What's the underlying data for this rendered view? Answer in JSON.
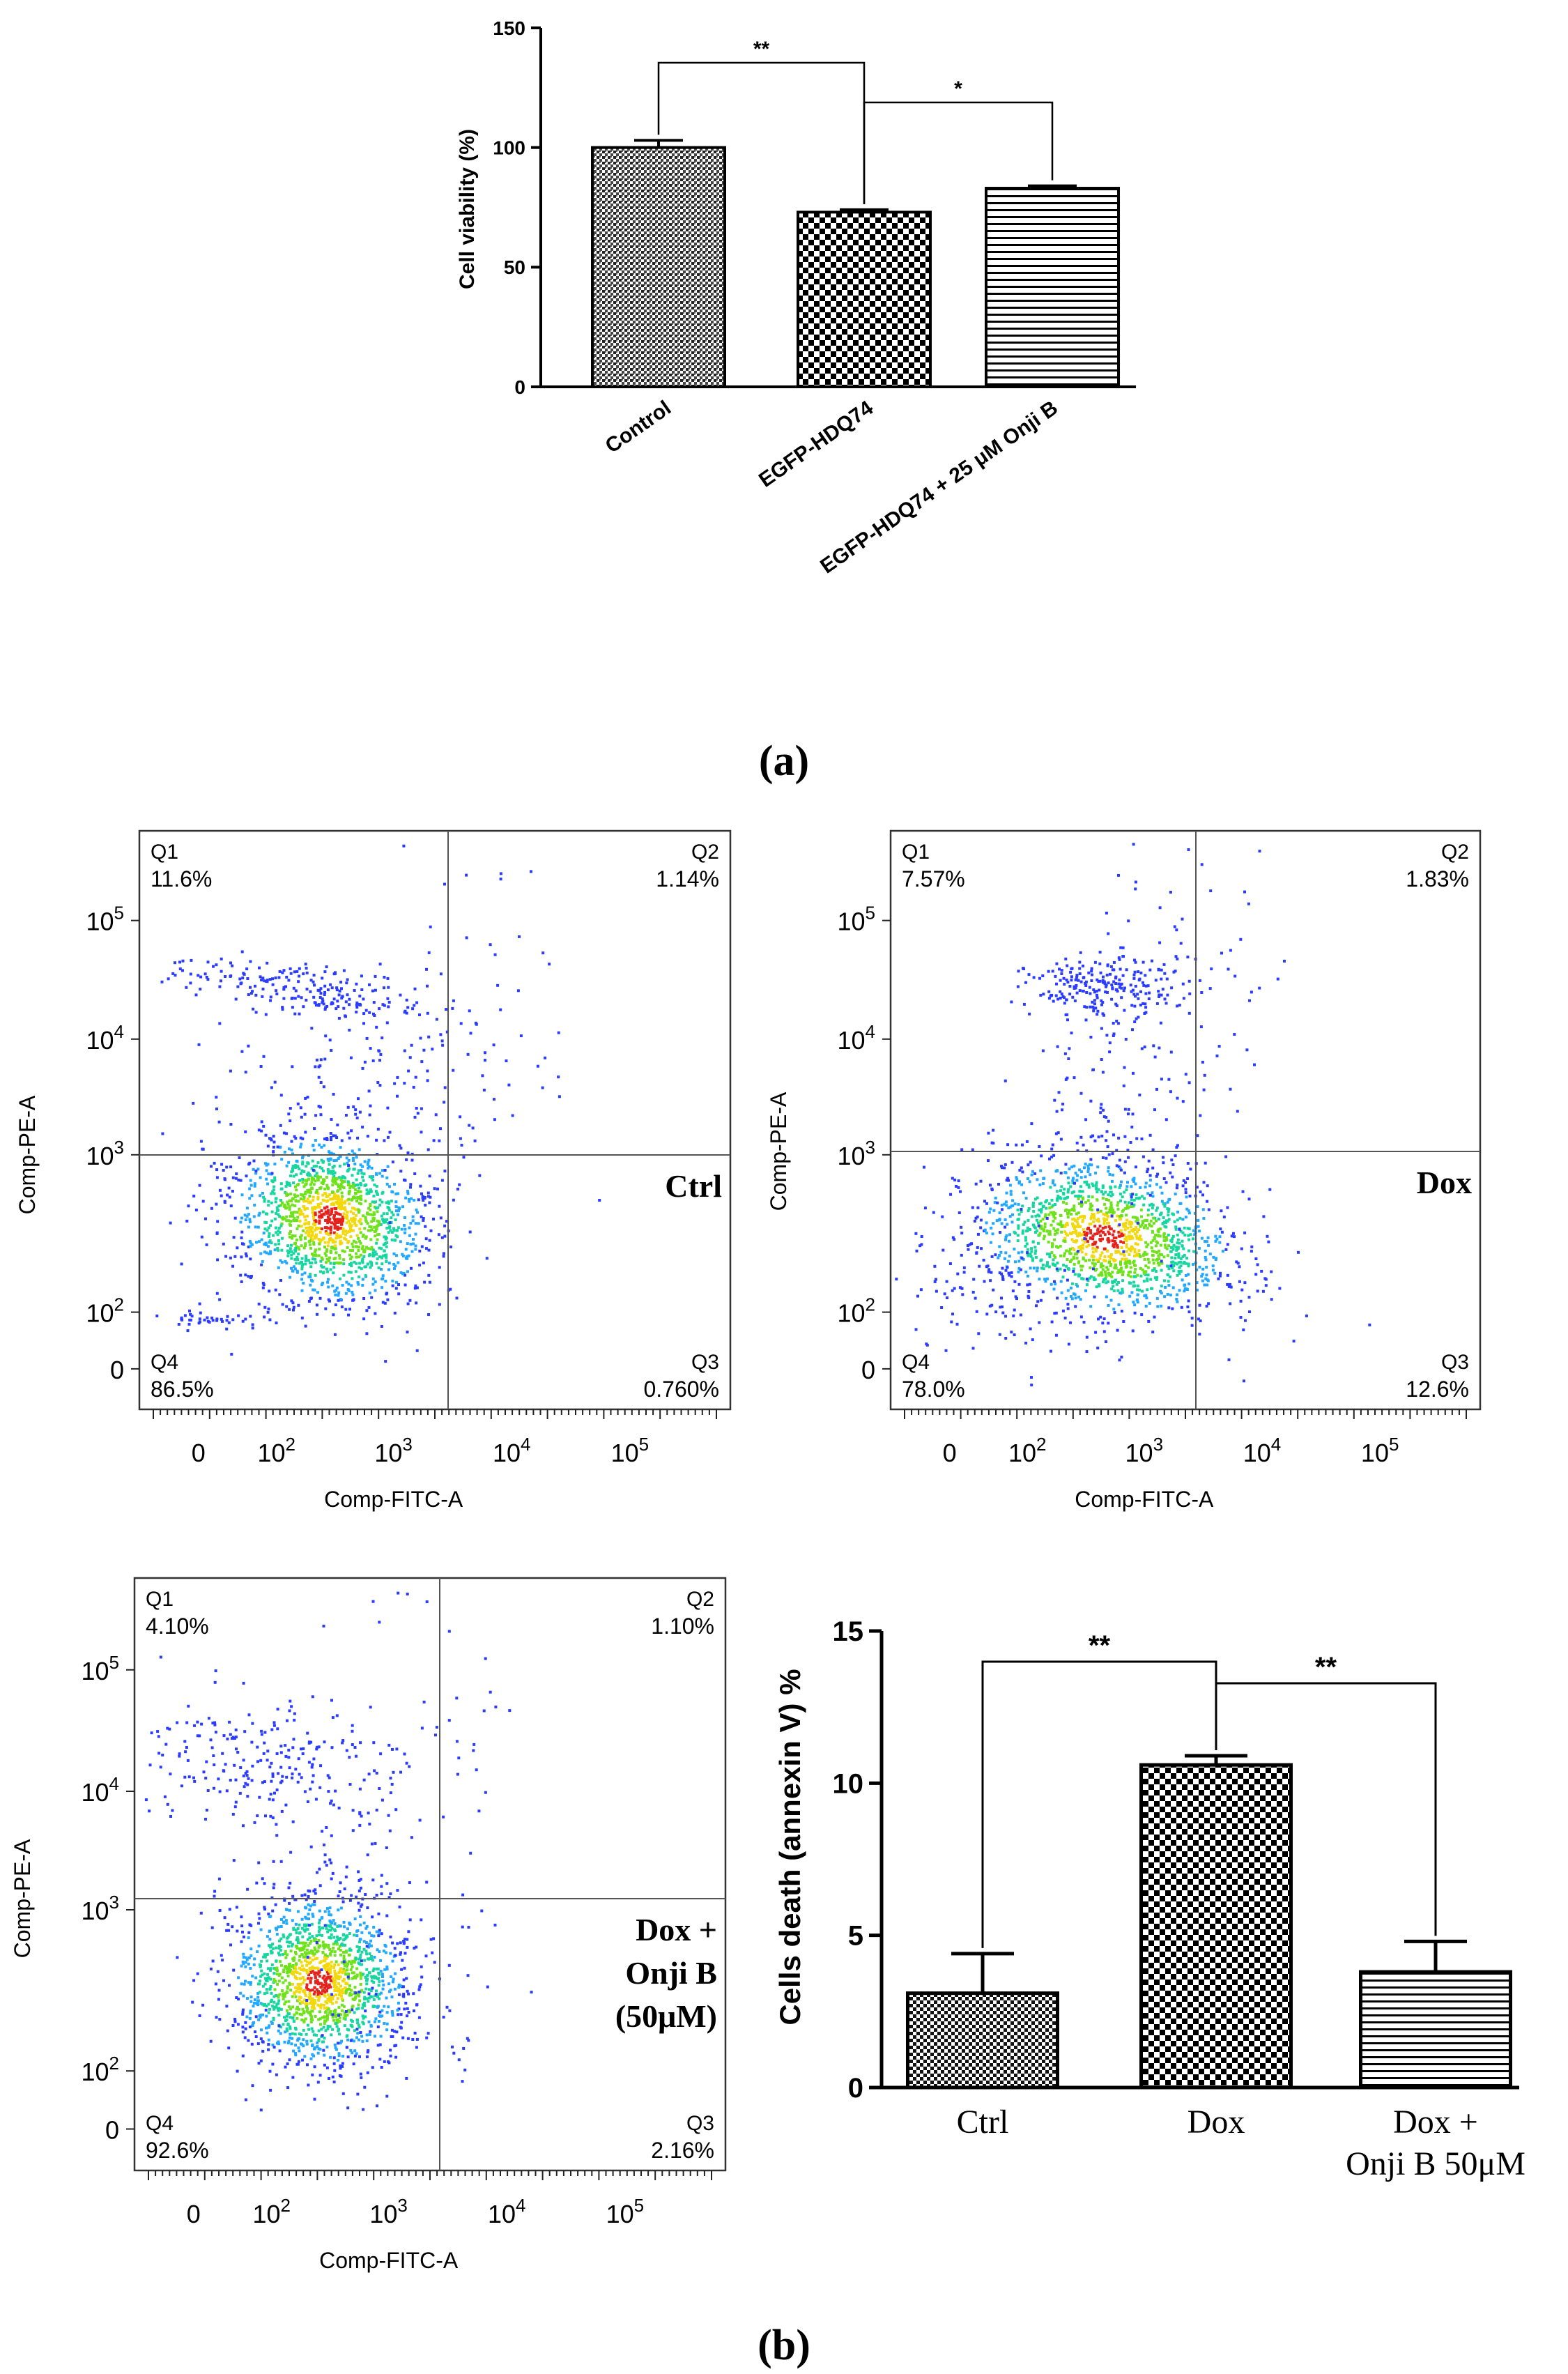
{
  "panel_a": {
    "label": "(a)",
    "chart_data": {
      "type": "bar",
      "categories": [
        "Control",
        "EGFP-HDQ74",
        "EGFP-HDQ74 + 25 μM Onji B"
      ],
      "values": [
        100,
        73,
        83
      ],
      "errors": [
        3,
        1,
        1
      ],
      "patterns": [
        "dense-dots",
        "checker",
        "horizontal-lines"
      ],
      "ylabel": "Cell viability (%)",
      "ylim": [
        0,
        150
      ],
      "yticks": [
        "0",
        "50",
        "100",
        "150"
      ],
      "significance": [
        {
          "from": 0,
          "to": 1,
          "label": "**"
        },
        {
          "from": 1,
          "to": 2,
          "label": "*"
        }
      ]
    }
  },
  "panel_b": {
    "label": "(b)",
    "flow_plots": [
      {
        "id": "ctrl",
        "condition_label_lines": [
          "Ctrl"
        ],
        "x_axis_label": "Comp-FITC-A",
        "y_axis_label": "Comp-PE-A",
        "quadrants": {
          "Q1": {
            "name": "Q1",
            "value": "11.6%"
          },
          "Q2": {
            "name": "Q2",
            "value": "1.14%"
          },
          "Q3": {
            "name": "Q3",
            "value": "0.760%"
          },
          "Q4": {
            "name": "Q4",
            "value": "86.5%"
          }
        }
      },
      {
        "id": "dox",
        "condition_label_lines": [
          "Dox"
        ],
        "x_axis_label": "Comp-FITC-A",
        "y_axis_label": "Comp-PE-A",
        "quadrants": {
          "Q1": {
            "name": "Q1",
            "value": "7.57%"
          },
          "Q2": {
            "name": "Q2",
            "value": "1.83%"
          },
          "Q3": {
            "name": "Q3",
            "value": "12.6%"
          },
          "Q4": {
            "name": "Q4",
            "value": "78.0%"
          }
        }
      },
      {
        "id": "dox-onji",
        "condition_label_lines": [
          "Dox +",
          "Onji B",
          "(50μM)"
        ],
        "x_axis_label": "Comp-FITC-A",
        "y_axis_label": "Comp-PE-A",
        "quadrants": {
          "Q1": {
            "name": "Q1",
            "value": "4.10%"
          },
          "Q2": {
            "name": "Q2",
            "value": "1.10%"
          },
          "Q3": {
            "name": "Q3",
            "value": "2.16%"
          },
          "Q4": {
            "name": "Q4",
            "value": "92.6%"
          }
        }
      }
    ],
    "flow_axis_ticks": {
      "x": [
        {
          "base": "0",
          "exp": ""
        },
        {
          "base": "10",
          "exp": "2"
        },
        {
          "base": "10",
          "exp": "3"
        },
        {
          "base": "10",
          "exp": "4"
        },
        {
          "base": "10",
          "exp": "5"
        }
      ],
      "y": [
        {
          "base": "0",
          "exp": ""
        },
        {
          "base": "10",
          "exp": "2"
        },
        {
          "base": "10",
          "exp": "3"
        },
        {
          "base": "10",
          "exp": "4"
        },
        {
          "base": "10",
          "exp": "5"
        }
      ]
    },
    "chart_data": {
      "type": "bar",
      "categories": [
        "Ctrl",
        "Dox",
        "Dox + Onji B 50μM"
      ],
      "category_label_lines": [
        [
          "Ctrl"
        ],
        [
          "Dox"
        ],
        [
          "Dox +",
          "Onji B 50μM"
        ]
      ],
      "values": [
        3.1,
        10.6,
        3.8
      ],
      "errors": [
        1.3,
        0.3,
        1.0
      ],
      "patterns": [
        "fine-checker",
        "checker",
        "horizontal-lines"
      ],
      "ylabel": "Cells death (annexin V) %",
      "ylim": [
        0,
        15
      ],
      "yticks": [
        "0",
        "5",
        "10",
        "15"
      ],
      "significance": [
        {
          "from": 0,
          "to": 1,
          "label": "**"
        },
        {
          "from": 1,
          "to": 2,
          "label": "**"
        }
      ]
    }
  }
}
